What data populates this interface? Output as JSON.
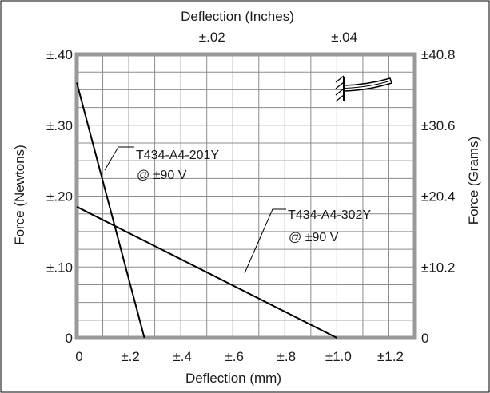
{
  "chart_data": {
    "type": "line",
    "x_axis_bottom": {
      "label": "Deflection  (mm)",
      "ticks": [
        {
          "value": 0,
          "label": "0"
        },
        {
          "value": 0.2,
          "label": "±.2"
        },
        {
          "value": 0.4,
          "label": "±.4"
        },
        {
          "value": 0.6,
          "label": "±.6"
        },
        {
          "value": 0.8,
          "label": "±.8"
        },
        {
          "value": 1.0,
          "label": "±1.0"
        },
        {
          "value": 1.2,
          "label": "±1.2"
        }
      ],
      "range": [
        0,
        1.3
      ]
    },
    "x_axis_top": {
      "label": "Deflection  (Inches)",
      "ticks": [
        {
          "value": 0.02,
          "label": "±.02"
        },
        {
          "value": 0.04,
          "label": "±.04"
        }
      ]
    },
    "y_axis_left": {
      "label": "Force  (Newtons)",
      "ticks": [
        {
          "value": 0,
          "label": "0"
        },
        {
          "value": 0.1,
          "label": "±.10"
        },
        {
          "value": 0.2,
          "label": "±.20"
        },
        {
          "value": 0.3,
          "label": "±.30"
        },
        {
          "value": 0.4,
          "label": "±.40"
        }
      ],
      "range": [
        0,
        0.4
      ]
    },
    "y_axis_right": {
      "label": "Force  (Grams)",
      "ticks": [
        {
          "value": 0,
          "label": "0"
        },
        {
          "value": 10.2,
          "label": "±10.2"
        },
        {
          "value": 20.4,
          "label": "±20.4"
        },
        {
          "value": 30.6,
          "label": "±30.6"
        },
        {
          "value": 40.8,
          "label": "±40.8"
        }
      ]
    },
    "series": [
      {
        "x": [
          0,
          0.26
        ],
        "y": [
          0.36,
          0
        ],
        "label_line1": "T434-A4-201Y",
        "label_line2": "@ ±90 V"
      },
      {
        "x": [
          0,
          1.0
        ],
        "y": [
          0.185,
          0
        ],
        "label_line1": "T434-A4-302Y",
        "label_line2": "@ ±90 V"
      }
    ],
    "grid": true
  }
}
